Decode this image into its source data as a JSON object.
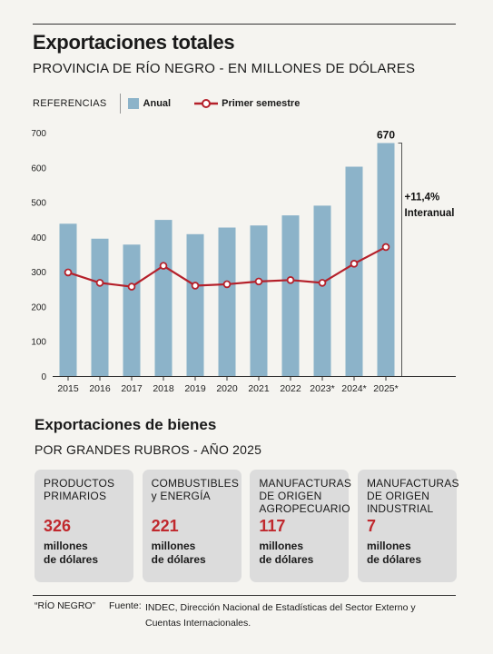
{
  "header": {
    "title": "Exportaciones totales",
    "subtitle": "PROVINCIA DE RÍO NEGRO - EN MILLONES DE DÓLARES"
  },
  "legend": {
    "references_label": "REFERENCIAS",
    "bar_label": "Anual",
    "line_label": "Primer semestre"
  },
  "chart_data": {
    "type": "bar",
    "categories": [
      "2015",
      "2016",
      "2017",
      "2018",
      "2019",
      "2020",
      "2021",
      "2022",
      "2023*",
      "2024*",
      "2025*"
    ],
    "series": [
      {
        "name": "Anual",
        "type": "bar",
        "values": [
          438,
          395,
          378,
          449,
          408,
          427,
          433,
          462,
          490,
          602,
          670
        ]
      },
      {
        "name": "Primer semestre",
        "type": "line",
        "values": [
          298,
          268,
          257,
          317,
          260,
          264,
          272,
          276,
          268,
          323,
          371
        ]
      }
    ],
    "y_ticks": [
      0,
      100,
      200,
      300,
      400,
      500,
      600,
      700
    ],
    "ylim": [
      0,
      700
    ],
    "data_labels": [
      {
        "category": "2025*",
        "text": "670"
      }
    ],
    "annotation": {
      "value": "+11,4%",
      "label": "Interanual"
    },
    "colors": {
      "bar": "#8cb3c9",
      "line": "#b5202a"
    },
    "grid": false
  },
  "section2": {
    "title": "Exportaciones de bienes",
    "subtitle": "POR GRANDES RUBROS - AÑO 2025",
    "cards": [
      {
        "name_line1": "PRODUCTOS",
        "name_line2": "PRIMARIOS",
        "name_line3": "",
        "value": "326",
        "unit_line1": "millones",
        "unit_line2": "de dólares"
      },
      {
        "name_line1": "COMBUSTIBLES",
        "name_line2": "y ENERGÍA",
        "name_line3": "",
        "value": "221",
        "unit_line1": "millones",
        "unit_line2": "de dólares"
      },
      {
        "name_line1": "MANUFACTURAS",
        "name_line2": "DE ORIGEN",
        "name_line3": "AGROPECUARIO",
        "value": "117",
        "unit_line1": "millones",
        "unit_line2": "de dólares"
      },
      {
        "name_line1": "MANUFACTURAS",
        "name_line2": "DE ORIGEN",
        "name_line3": "INDUSTRIAL",
        "value": "7",
        "unit_line1": "millones",
        "unit_line2": "de dólares"
      }
    ]
  },
  "footer": {
    "credit": "“RÍO NEGRO”",
    "source_label": "Fuente:",
    "source_line1": "INDEC, Dirección Nacional de Estadísticas del Sector Externo y",
    "source_line2": "Cuentas Internacionales."
  }
}
